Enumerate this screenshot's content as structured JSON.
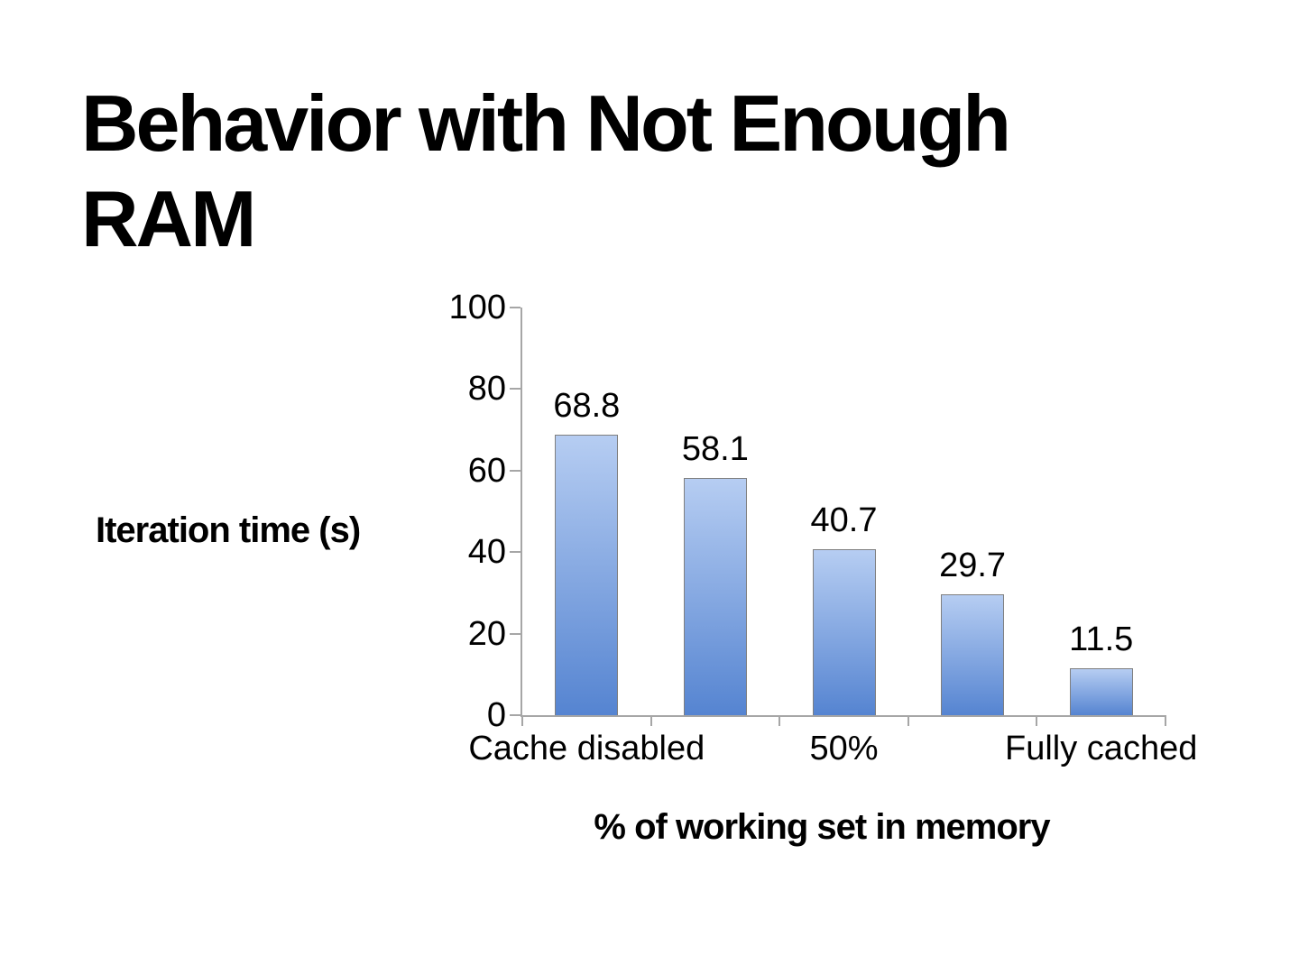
{
  "slide": {
    "title": "Behavior with Not Enough RAM"
  },
  "chart_data": {
    "type": "bar",
    "title": "Behavior with Not Enough RAM",
    "ylabel": "Iteration time (s)",
    "xlabel": "% of working set in memory",
    "categories": [
      "Cache disabled",
      "",
      "50%",
      "",
      "Fully cached"
    ],
    "values": [
      68.8,
      58.1,
      40.7,
      29.7,
      11.5
    ],
    "bar_value_labels": [
      "68.8",
      "58.1",
      "40.7",
      "29.7",
      "11.5"
    ],
    "x_tick_labels": [
      {
        "text": "Cache disabled",
        "slot": 0
      },
      {
        "text": "50%",
        "slot": 2
      },
      {
        "text": "Fully cached",
        "slot": 4
      }
    ],
    "y_ticks": [
      0,
      20,
      40,
      60,
      80,
      100
    ],
    "ylim": [
      0,
      100
    ],
    "grid": false,
    "legend": false,
    "colors": {
      "bar_gradient_top": "#b6cdf2",
      "bar_gradient_bottom": "#5584d1",
      "bar_border": "#7f7f7f",
      "axis": "#a6a6a6",
      "text": "#000000"
    }
  }
}
